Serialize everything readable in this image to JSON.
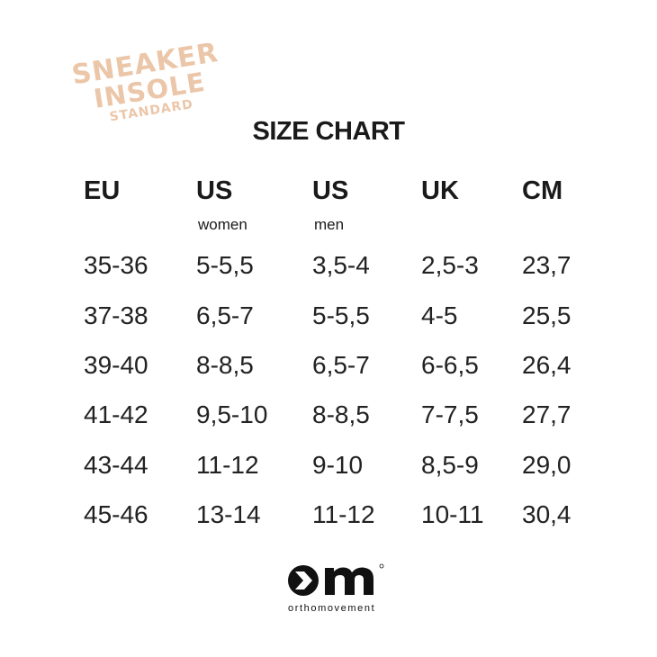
{
  "logo": {
    "line1": "SNEAKER",
    "line2": "INSOLE",
    "line3": "STANDARD",
    "color": "#ebc6a8"
  },
  "title": "SIZE CHART",
  "columns": [
    {
      "header": "EU",
      "sub": ""
    },
    {
      "header": "US",
      "sub": "women"
    },
    {
      "header": "US",
      "sub": "men"
    },
    {
      "header": "UK",
      "sub": ""
    },
    {
      "header": "CM",
      "sub": ""
    }
  ],
  "rows": [
    [
      "35-36",
      "5-5,5",
      "3,5-4",
      "2,5-3",
      "23,7"
    ],
    [
      "37-38",
      "6,5-7",
      "5-5,5",
      "4-5",
      "25,5"
    ],
    [
      "39-40",
      "8-8,5",
      "6,5-7",
      "6-6,5",
      "26,4"
    ],
    [
      "41-42",
      "9,5-10",
      "8-8,5",
      "7-7,5",
      "27,7"
    ],
    [
      "43-44",
      "11-12",
      "9-10",
      "8,5-9",
      "29,0"
    ],
    [
      "45-46",
      "13-14",
      "11-12",
      "10-11",
      "30,4"
    ]
  ],
  "brand": {
    "name": "orthomovement",
    "mark": "om"
  }
}
